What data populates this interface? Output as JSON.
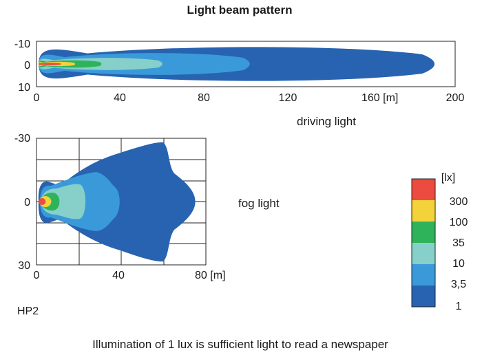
{
  "title": "Light beam pattern",
  "colors": {
    "1": "#2763b0",
    "3,5": "#3a9ad9",
    "10": "#86d0c9",
    "35": "#2fb35a",
    "100": "#f3d23a",
    "300": "#ec4b3f"
  },
  "chart_data": [
    {
      "type": "heatmap",
      "name": "driving light",
      "x_ticks": [
        "0",
        "40",
        "80",
        "120",
        "160 [m]",
        "200"
      ],
      "y_ticks": [
        "-10",
        "0",
        "10"
      ],
      "xlim": [
        0,
        200
      ],
      "ylim": [
        -10,
        10
      ],
      "reach_m": {
        "1": 196,
        "3,5": 105,
        "10": 62,
        "35": 32,
        "100": 19,
        "300": 12
      },
      "grid": false
    },
    {
      "type": "heatmap",
      "name": "fog light",
      "x_ticks": [
        "0",
        "40",
        "80 [m]"
      ],
      "y_ticks": [
        "-30",
        "0",
        "30"
      ],
      "xlim": [
        0,
        80
      ],
      "ylim": [
        -30,
        30
      ],
      "reach_m": {
        "1": 75,
        "3,5": 40,
        "10": 24,
        "35": 12,
        "100": 7,
        "300": 4
      },
      "grid": true
    }
  ],
  "legend": {
    "unit": "[lx]",
    "entries": [
      {
        "label": "300",
        "key": "300"
      },
      {
        "label": "100",
        "key": "100"
      },
      {
        "label": "35",
        "key": "35"
      },
      {
        "label": "10",
        "key": "10"
      },
      {
        "label": "3,5",
        "key": "3,5"
      },
      {
        "label": "1",
        "key": "1"
      }
    ]
  },
  "labels": {
    "driving": "driving light",
    "fog": "fog light",
    "model": "HP2",
    "footer": "Illumination of 1 lux is sufficient light to read a newspaper"
  }
}
